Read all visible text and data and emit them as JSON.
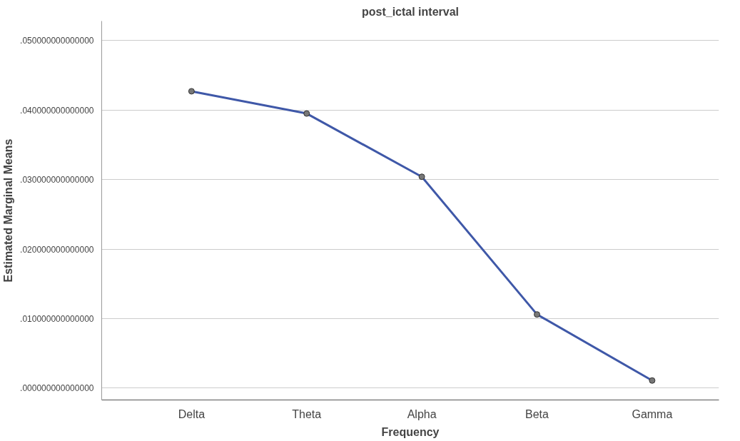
{
  "chart_data": {
    "type": "line",
    "title": "post_ictal interval",
    "xlabel": "Frequency",
    "ylabel": "Estimated Marginal Means",
    "categories": [
      "Delta",
      "Theta",
      "Alpha",
      "Beta",
      "Gamma"
    ],
    "series": [
      {
        "color": "#3f58a8",
        "values": [
          0.0427,
          0.0395,
          0.0304,
          0.0106,
          0.0011
        ]
      }
    ],
    "ylim": [
      -0.0017,
      0.0528
    ],
    "yticks": [
      {
        "value": 0,
        "label": ".000000000000000"
      },
      {
        "value": 0.01,
        "label": ".010000000000000"
      },
      {
        "value": 0.02,
        "label": ".020000000000000"
      },
      {
        "value": 0.03,
        "label": ".030000000000000"
      },
      {
        "value": 0.04,
        "label": ".040000000000000"
      },
      {
        "value": 0.05,
        "label": ".050000000000000"
      }
    ],
    "grid": "y",
    "marker": "circle",
    "line_style": "solid"
  }
}
